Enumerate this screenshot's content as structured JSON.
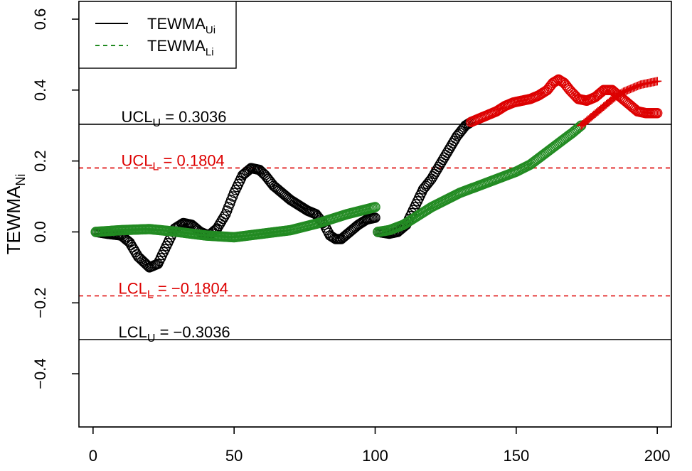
{
  "chart_data": {
    "type": "scatter",
    "title": "",
    "xlabel": "",
    "ylabel": "TEWMA",
    "ylabel_sub": "Ni",
    "xlim": [
      -5,
      205
    ],
    "ylim": [
      -0.55,
      0.65
    ],
    "xticks": [
      "0",
      "50",
      "100",
      "150",
      "200"
    ],
    "yticks": [
      "−0.4",
      "−0.2",
      "0.0",
      "0.2",
      "0.4",
      "0.6"
    ],
    "grid": false,
    "legend_position": "top-left",
    "legend": [
      {
        "label": "TEWMA",
        "sub": "Ui",
        "style": "solid",
        "color": "#000000"
      },
      {
        "label": "TEWMA",
        "sub": "Li",
        "style": "dashed",
        "color": "#228B22"
      }
    ],
    "control_limits": [
      {
        "name": "UCL",
        "sub": "U",
        "value": 0.3036,
        "text": " = 0.3036",
        "style": "solid",
        "color": "#000000",
        "label_x": 10
      },
      {
        "name": "UCL",
        "sub": "L",
        "value": 0.1804,
        "text": " = 0.1804",
        "style": "dashed",
        "color": "#DD0000",
        "label_x": 10
      },
      {
        "name": "LCL",
        "sub": "L",
        "value": -0.1804,
        "text": " = −0.1804",
        "style": "dashed",
        "color": "#DD0000",
        "label_x": 9
      },
      {
        "name": "LCL",
        "sub": "U",
        "value": -0.3036,
        "text": " = −0.3036",
        "style": "solid",
        "color": "#000000",
        "label_x": 9
      }
    ],
    "series": [
      {
        "name": "TEWMA Ui (phase 1)",
        "marker": "circle",
        "color": "#000000",
        "x": [
          1,
          5,
          10,
          13,
          16,
          20,
          23,
          26,
          29,
          32,
          35,
          38,
          41,
          44,
          47,
          50,
          53,
          56,
          59,
          61,
          64,
          67,
          70,
          73,
          76,
          79,
          82,
          84,
          86,
          88,
          91,
          94,
          97,
          100
        ],
        "y": [
          0.0,
          -0.005,
          -0.01,
          -0.03,
          -0.07,
          -0.1,
          -0.09,
          -0.04,
          0.01,
          0.025,
          0.02,
          0.0,
          -0.01,
          0.01,
          0.05,
          0.11,
          0.16,
          0.18,
          0.175,
          0.16,
          0.13,
          0.11,
          0.09,
          0.075,
          0.06,
          0.05,
          0.02,
          -0.01,
          -0.02,
          -0.02,
          0.0,
          0.02,
          0.035,
          0.04
        ]
      },
      {
        "name": "TEWMA Li (phase 1)",
        "marker": "circle",
        "color": "#228B22",
        "x": [
          1,
          10,
          20,
          30,
          40,
          50,
          55,
          60,
          70,
          80,
          90,
          100
        ],
        "y": [
          0.0,
          0.005,
          0.008,
          0.0,
          -0.01,
          -0.015,
          -0.01,
          -0.005,
          0.005,
          0.025,
          0.05,
          0.07
        ]
      },
      {
        "name": "TEWMA Ui (phase 2, in control)",
        "marker": "circle",
        "color": "#000000",
        "x": [
          101,
          105,
          108,
          111,
          114,
          117,
          120,
          123,
          126,
          129,
          132,
          134
        ],
        "y": [
          0.0,
          -0.005,
          0.0,
          0.02,
          0.07,
          0.12,
          0.15,
          0.19,
          0.23,
          0.27,
          0.3,
          0.31
        ]
      },
      {
        "name": "TEWMA Ui (phase 2, out of control)",
        "marker": "circle",
        "color": "#DD0000",
        "x": [
          134,
          137,
          140,
          143,
          146,
          149,
          152,
          155,
          158,
          161,
          163,
          165,
          167,
          169,
          172,
          175,
          178,
          181,
          184,
          187,
          190,
          193,
          196,
          200
        ],
        "y": [
          0.31,
          0.32,
          0.33,
          0.34,
          0.355,
          0.365,
          0.37,
          0.375,
          0.385,
          0.4,
          0.42,
          0.43,
          0.42,
          0.4,
          0.375,
          0.37,
          0.38,
          0.4,
          0.4,
          0.38,
          0.36,
          0.34,
          0.335,
          0.335
        ]
      },
      {
        "name": "TEWMA Li (phase 2, in control)",
        "marker": "circle",
        "color": "#228B22",
        "x": [
          101,
          105,
          110,
          115,
          120,
          125,
          130,
          135,
          140,
          145,
          150,
          155,
          160,
          165,
          170,
          173
        ],
        "y": [
          0.0,
          0.005,
          0.02,
          0.045,
          0.07,
          0.09,
          0.11,
          0.125,
          0.14,
          0.155,
          0.17,
          0.19,
          0.22,
          0.25,
          0.28,
          0.3
        ]
      },
      {
        "name": "TEWMA Li (phase 2, out of control)",
        "marker": "plus",
        "color": "#DD0000",
        "x": [
          173,
          176,
          179,
          182,
          185,
          188,
          191,
          194,
          197,
          200
        ],
        "y": [
          0.3,
          0.32,
          0.34,
          0.36,
          0.38,
          0.395,
          0.405,
          0.415,
          0.42,
          0.425
        ]
      }
    ]
  }
}
